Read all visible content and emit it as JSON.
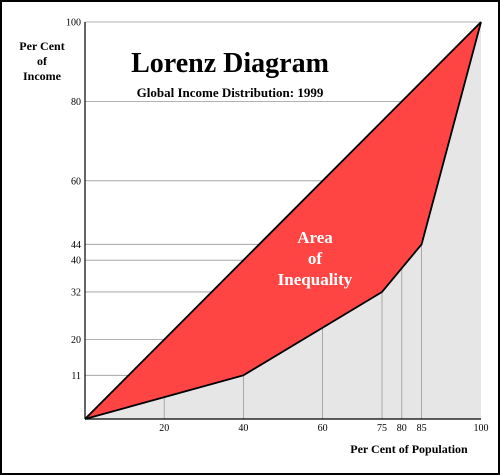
{
  "chart_data": {
    "type": "area",
    "title": "Lorenz Diagram",
    "subtitle": "Global Income Distribution: 1999",
    "xlabel": "Per Cent of Population",
    "ylabel": [
      "Per Cent",
      "of",
      "Income"
    ],
    "xlim": [
      0,
      100
    ],
    "ylim": [
      0,
      100
    ],
    "x_ticks": [
      20,
      40,
      60,
      75,
      80,
      85,
      100
    ],
    "y_ticks": [
      11,
      20,
      32,
      40,
      44,
      60,
      80,
      100
    ],
    "grid": true,
    "annotation": [
      "Area",
      "of",
      "Inequality"
    ],
    "equality_line": {
      "x": [
        0,
        100
      ],
      "y": [
        0,
        100
      ]
    },
    "lorenz_curve": {
      "x": [
        0,
        40,
        75,
        85,
        100
      ],
      "y": [
        0,
        11,
        32,
        44,
        100
      ]
    },
    "colors": {
      "inequality_area": "#ff4444",
      "below_curve_area": "#e6e6e6",
      "grid": "#999999",
      "annotation_text": "#ffffff"
    }
  }
}
